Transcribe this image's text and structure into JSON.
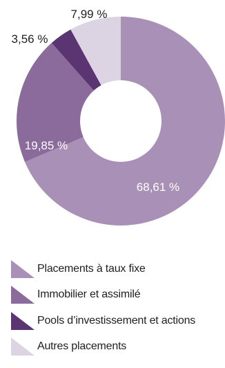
{
  "chart_data": {
    "type": "pie",
    "donut": true,
    "title": "",
    "categories": [
      "Placements à taux fixe",
      "Immobilier et assimilé",
      "Pools d’investissement et actions",
      "Autres placements"
    ],
    "values": [
      68.61,
      19.85,
      3.56,
      7.99
    ],
    "value_labels": [
      "68,61 %",
      "19,85 %",
      "3,56 %",
      "7,99 %"
    ],
    "colors": [
      "#a890b6",
      "#8b6b9c",
      "#5b3571",
      "#ddd4e3"
    ],
    "label_colors": [
      "#ffffff",
      "#ffffff",
      "#1f1f1f",
      "#1f1f1f"
    ],
    "legend_position": "bottom"
  }
}
